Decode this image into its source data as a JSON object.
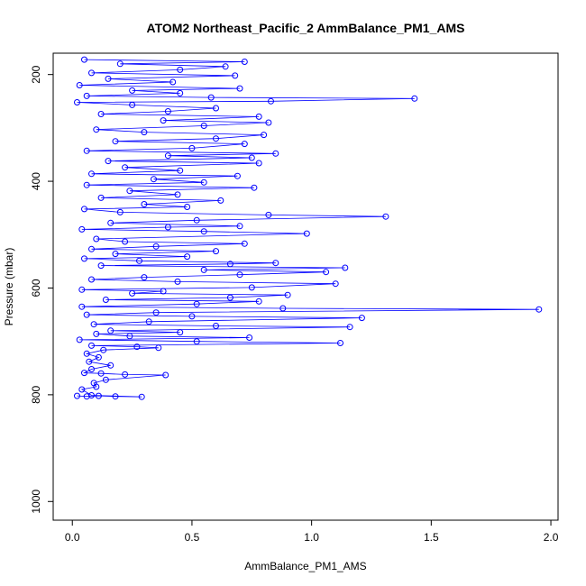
{
  "chart_data": {
    "type": "scatter",
    "title": "ATOM2 Northeast_Pacific_2 AmmBalance_PM1_AMS",
    "xlabel": "AmmBalance_PM1_AMS",
    "ylabel": "Pressure (mbar)",
    "xlim": [
      -0.08,
      2.03
    ],
    "ylim": [
      1035,
      160
    ],
    "y_reversed": true,
    "xticks": [
      0.0,
      0.5,
      1.0,
      1.5,
      2.0
    ],
    "xtick_labels": [
      "0.0",
      "0.5",
      "1.0",
      "1.5",
      "2.0"
    ],
    "yticks": [
      200,
      400,
      600,
      800,
      1000
    ],
    "ytick_labels": [
      "200",
      "400",
      "600",
      "800",
      "1000"
    ],
    "grid": false,
    "series": [
      {
        "color": "#0000ff",
        "marker": "open-circle",
        "connected": true,
        "points": [
          [
            0.02,
            802
          ],
          [
            0.06,
            803
          ],
          [
            0.11,
            802
          ],
          [
            0.18,
            803
          ],
          [
            0.29,
            804
          ],
          [
            0.08,
            801
          ],
          [
            0.04,
            790
          ],
          [
            0.1,
            785
          ],
          [
            0.09,
            778
          ],
          [
            0.14,
            772
          ],
          [
            0.39,
            763
          ],
          [
            0.22,
            762
          ],
          [
            0.12,
            760
          ],
          [
            0.05,
            759
          ],
          [
            0.08,
            752
          ],
          [
            0.16,
            745
          ],
          [
            0.07,
            738
          ],
          [
            0.11,
            730
          ],
          [
            0.06,
            723
          ],
          [
            0.13,
            716
          ],
          [
            0.36,
            712
          ],
          [
            0.27,
            710
          ],
          [
            0.08,
            708
          ],
          [
            1.12,
            703
          ],
          [
            0.52,
            700
          ],
          [
            0.03,
            697
          ],
          [
            0.74,
            693
          ],
          [
            0.24,
            690
          ],
          [
            0.1,
            686
          ],
          [
            0.45,
            683
          ],
          [
            0.16,
            680
          ],
          [
            1.16,
            673
          ],
          [
            0.6,
            671
          ],
          [
            0.09,
            668
          ],
          [
            0.32,
            663
          ],
          [
            1.21,
            656
          ],
          [
            0.5,
            653
          ],
          [
            0.06,
            650
          ],
          [
            0.35,
            646
          ],
          [
            1.95,
            640
          ],
          [
            0.88,
            638
          ],
          [
            0.04,
            635
          ],
          [
            0.52,
            630
          ],
          [
            0.78,
            625
          ],
          [
            0.14,
            622
          ],
          [
            0.66,
            618
          ],
          [
            0.9,
            613
          ],
          [
            0.25,
            610
          ],
          [
            0.38,
            606
          ],
          [
            0.04,
            603
          ],
          [
            0.75,
            599
          ],
          [
            1.1,
            592
          ],
          [
            0.44,
            588
          ],
          [
            0.08,
            584
          ],
          [
            0.3,
            580
          ],
          [
            0.7,
            575
          ],
          [
            1.06,
            570
          ],
          [
            0.55,
            566
          ],
          [
            1.14,
            562
          ],
          [
            0.12,
            558
          ],
          [
            0.66,
            555
          ],
          [
            0.85,
            553
          ],
          [
            0.28,
            549
          ],
          [
            0.05,
            545
          ],
          [
            0.48,
            541
          ],
          [
            0.18,
            536
          ],
          [
            0.6,
            531
          ],
          [
            0.08,
            527
          ],
          [
            0.35,
            522
          ],
          [
            0.72,
            517
          ],
          [
            0.22,
            513
          ],
          [
            0.1,
            508
          ],
          [
            0.98,
            498
          ],
          [
            0.55,
            494
          ],
          [
            0.04,
            490
          ],
          [
            0.4,
            486
          ],
          [
            0.7,
            484
          ],
          [
            0.16,
            478
          ],
          [
            0.52,
            473
          ],
          [
            1.31,
            466
          ],
          [
            0.82,
            463
          ],
          [
            0.2,
            458
          ],
          [
            0.05,
            452
          ],
          [
            0.48,
            448
          ],
          [
            0.3,
            443
          ],
          [
            0.62,
            436
          ],
          [
            0.12,
            431
          ],
          [
            0.44,
            425
          ],
          [
            0.24,
            418
          ],
          [
            0.76,
            412
          ],
          [
            0.06,
            407
          ],
          [
            0.55,
            402
          ],
          [
            0.34,
            396
          ],
          [
            0.69,
            390
          ],
          [
            0.08,
            386
          ],
          [
            0.45,
            380
          ],
          [
            0.22,
            374
          ],
          [
            0.78,
            366
          ],
          [
            0.15,
            362
          ],
          [
            0.75,
            356
          ],
          [
            0.4,
            352
          ],
          [
            0.85,
            348
          ],
          [
            0.06,
            343
          ],
          [
            0.5,
            338
          ],
          [
            0.72,
            330
          ],
          [
            0.18,
            325
          ],
          [
            0.6,
            320
          ],
          [
            0.8,
            313
          ],
          [
            0.3,
            308
          ],
          [
            0.1,
            303
          ],
          [
            0.55,
            296
          ],
          [
            0.82,
            290
          ],
          [
            0.38,
            286
          ],
          [
            0.78,
            279
          ],
          [
            0.12,
            274
          ],
          [
            0.4,
            269
          ],
          [
            0.6,
            263
          ],
          [
            0.25,
            257
          ],
          [
            0.02,
            252
          ],
          [
            0.83,
            250
          ],
          [
            1.43,
            245
          ],
          [
            0.58,
            243
          ],
          [
            0.06,
            240
          ],
          [
            0.45,
            235
          ],
          [
            0.25,
            230
          ],
          [
            0.7,
            226
          ],
          [
            0.03,
            220
          ],
          [
            0.42,
            214
          ],
          [
            0.15,
            208
          ],
          [
            0.68,
            202
          ],
          [
            0.08,
            197
          ],
          [
            0.45,
            191
          ],
          [
            0.64,
            185
          ],
          [
            0.2,
            180
          ],
          [
            0.72,
            176
          ],
          [
            0.05,
            172
          ]
        ]
      }
    ]
  }
}
